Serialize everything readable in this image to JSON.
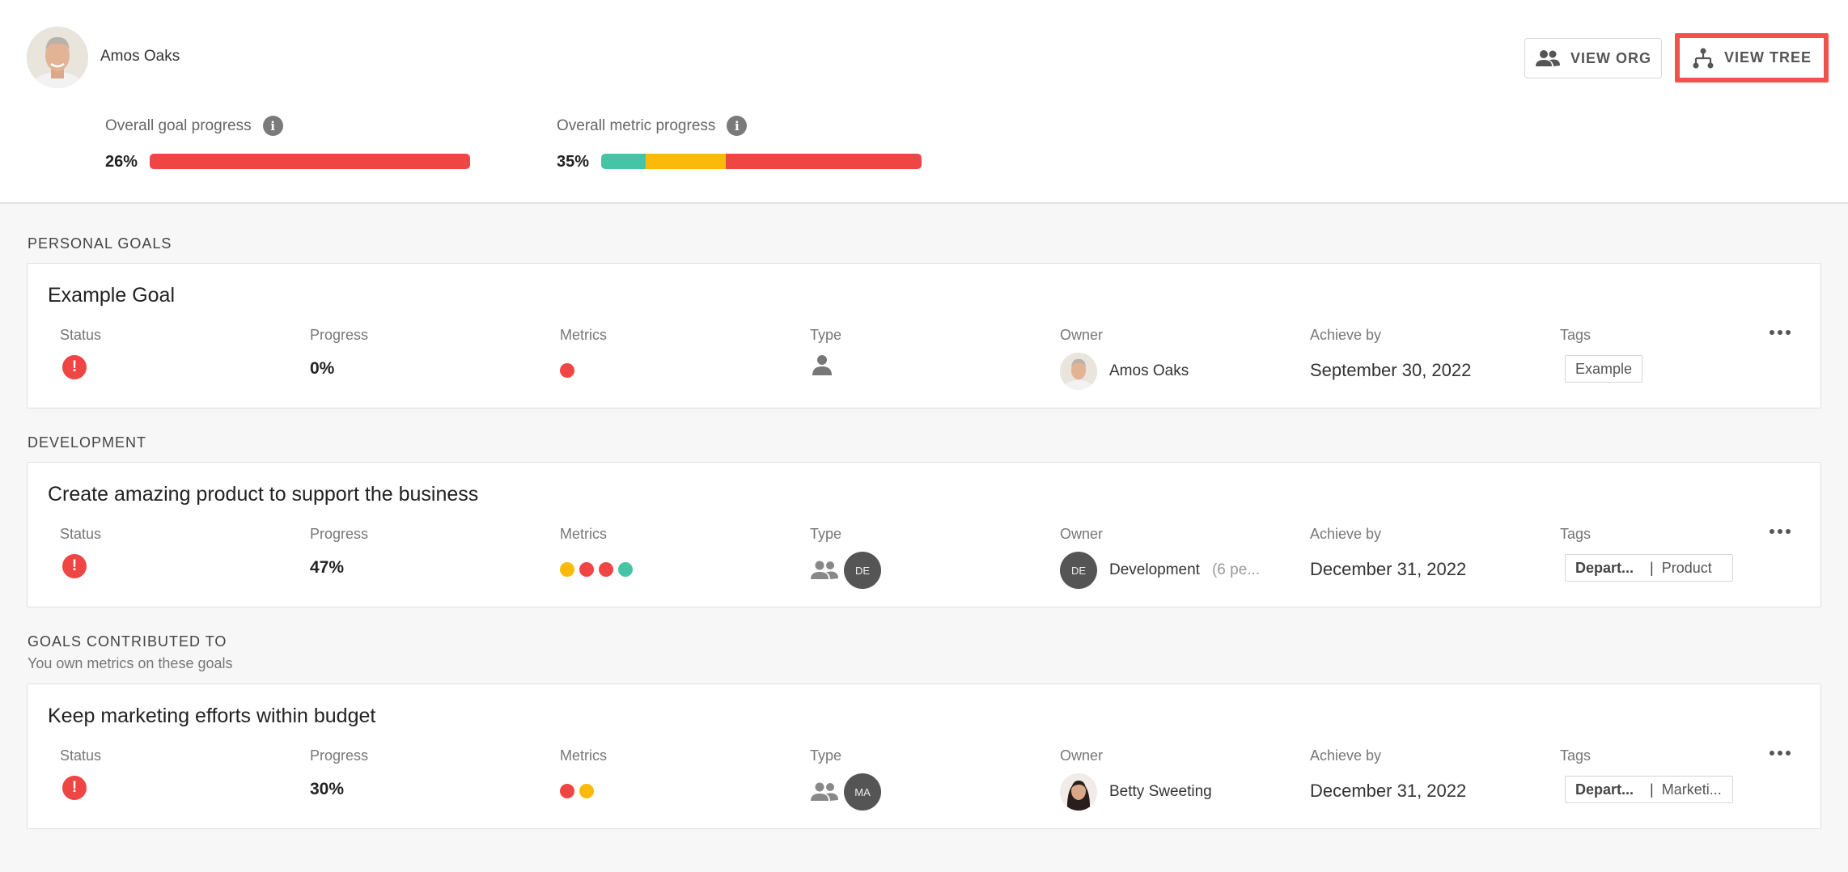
{
  "user": {
    "name": "Amos Oaks"
  },
  "buttons": {
    "view_org": "VIEW ORG",
    "view_tree": "VIEW TREE"
  },
  "progress": {
    "goal": {
      "label": "Overall goal progress",
      "pct": "26%",
      "segments": [
        {
          "color": "#ef4545",
          "fraction": 1.0
        }
      ]
    },
    "metric": {
      "label": "Overall metric progress",
      "pct": "35%",
      "segments": [
        {
          "color": "#46c4a6",
          "fraction": 0.14
        },
        {
          "color": "#fbba0b",
          "fraction": 0.25
        },
        {
          "color": "#ef4545",
          "fraction": 0.61
        }
      ]
    }
  },
  "columns": {
    "status": "Status",
    "progress": "Progress",
    "metrics": "Metrics",
    "type": "Type",
    "owner": "Owner",
    "achieve_by": "Achieve by",
    "tags": "Tags"
  },
  "colors": {
    "red": "#ef4545",
    "yellow": "#fbba0b",
    "green": "#46c4a6",
    "highlight": "#f0524e"
  },
  "sections": [
    {
      "title": "PERSONAL GOALS",
      "goal": {
        "title": "Example Goal",
        "progress": "0%",
        "metrics": [
          "red"
        ],
        "type_icon": "person-icon",
        "type_badge": "",
        "owner": "Amos Oaks",
        "owner_extra": "",
        "owner_initials": "",
        "achieve_by": "September 30, 2022",
        "tags": [
          "Example"
        ]
      }
    },
    {
      "title": "DEVELOPMENT",
      "goal": {
        "title": "Create amazing product to support the business",
        "progress": "47%",
        "metrics": [
          "yellow",
          "red",
          "red",
          "green"
        ],
        "type_icon": "group-icon",
        "type_badge": "DE",
        "owner": "Development",
        "owner_extra": "(6 pe...",
        "owner_initials": "DE",
        "achieve_by": "December 31, 2022",
        "tags": [
          "Depart...",
          "Product"
        ]
      }
    },
    {
      "title": "GOALS CONTRIBUTED TO",
      "subtitle": "You own metrics on these goals",
      "goal": {
        "title": "Keep marketing efforts within budget",
        "progress": "30%",
        "metrics": [
          "red",
          "yellow"
        ],
        "type_icon": "group-icon",
        "type_badge": "MA",
        "owner": "Betty Sweeting",
        "owner_extra": "",
        "owner_initials": "",
        "achieve_by": "December 31, 2022",
        "tags": [
          "Depart...",
          "Marketi..."
        ]
      }
    }
  ]
}
